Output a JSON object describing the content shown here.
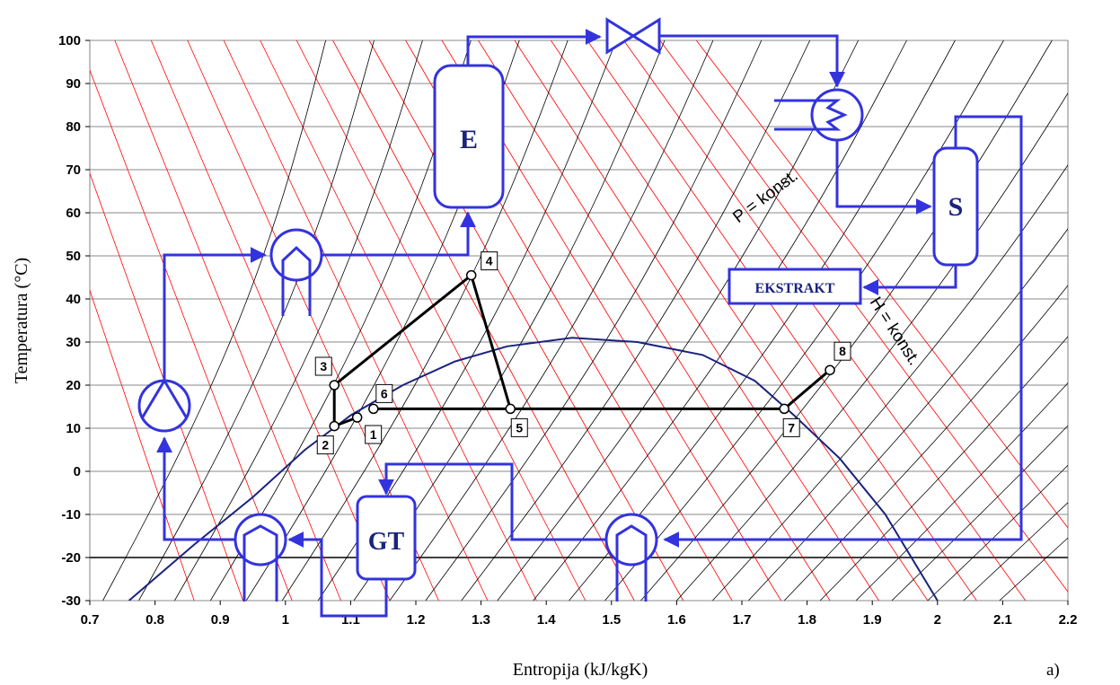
{
  "chart_data": {
    "type": "line",
    "xlabel": "Entropija (kJ/kgK)",
    "ylabel": "Temperatura (°C)",
    "xlim": [
      0.7,
      2.2
    ],
    "ylim": [
      -30,
      100
    ],
    "x_ticks": [
      "0.7",
      "0.8",
      "0.9",
      "1",
      "1.1",
      "1.2",
      "1.3",
      "1.4",
      "1.5",
      "1.6",
      "1.7",
      "1.8",
      "1.9",
      "2",
      "2.1",
      "2.2"
    ],
    "y_ticks": [
      "100",
      "90",
      "80",
      "70",
      "60",
      "50",
      "40",
      "30",
      "20",
      "10",
      "0",
      "-10",
      "-20",
      "-30"
    ],
    "grid": "horizontal",
    "line_labels": {
      "isobar": "P = konst.",
      "isenthalp": "H = konst."
    },
    "panel_label": "a)",
    "saturation_dome": {
      "color": "#1a237e",
      "points": [
        [
          0.76,
          -30
        ],
        [
          0.86,
          -17
        ],
        [
          0.95,
          -6
        ],
        [
          1.03,
          5
        ],
        [
          1.1,
          13
        ],
        [
          1.18,
          20
        ],
        [
          1.26,
          25.5
        ],
        [
          1.34,
          29
        ],
        [
          1.44,
          31
        ],
        [
          1.54,
          30
        ],
        [
          1.64,
          27
        ],
        [
          1.72,
          21
        ],
        [
          1.78,
          13
        ],
        [
          1.85,
          3
        ],
        [
          1.92,
          -10
        ],
        [
          2.0,
          -30
        ]
      ]
    },
    "cycle_points": [
      {
        "id": "1",
        "s": 1.11,
        "T": 12.5
      },
      {
        "id": "2",
        "s": 1.075,
        "T": 10.5
      },
      {
        "id": "3",
        "s": 1.075,
        "T": 20
      },
      {
        "id": "4",
        "s": 1.285,
        "T": 45.5
      },
      {
        "id": "5",
        "s": 1.345,
        "T": 14.5
      },
      {
        "id": "6",
        "s": 1.135,
        "T": 14.5
      },
      {
        "id": "7",
        "s": 1.765,
        "T": 14.5
      },
      {
        "id": "8",
        "s": 1.835,
        "T": 23.5
      }
    ],
    "cycle_path": [
      "2",
      "3",
      "4",
      "5",
      "7",
      "8"
    ],
    "cycle_segments": [
      [
        "6",
        "5"
      ],
      [
        "2",
        "1"
      ]
    ],
    "colors": {
      "isobar": "#000000",
      "isenthalp": "#ff0000",
      "dome": "#1a237e",
      "process": "#3333dd",
      "cycle": "#000000"
    }
  },
  "units": {
    "extractor": "E",
    "separator": "S",
    "extract": "EKSTRAKT",
    "gas_tank": "GT"
  }
}
